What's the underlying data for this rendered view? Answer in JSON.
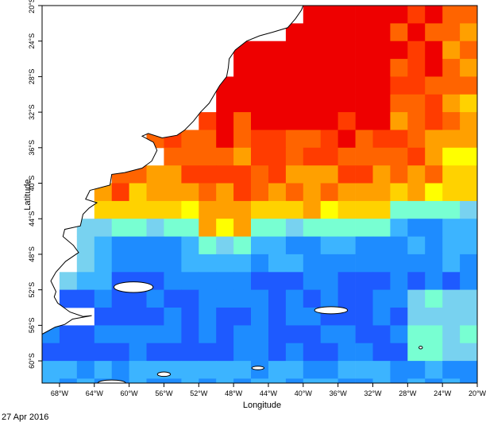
{
  "map": {
    "xlabel": "Longitude",
    "ylabel": "Latitude",
    "lon_ticks": [
      "68°W",
      "64°W",
      "60°W",
      "56°W",
      "52°W",
      "48°W",
      "44°W",
      "40°W",
      "36°W",
      "32°W",
      "28°W",
      "24°W",
      "20°W"
    ],
    "lat_ticks": [
      "20°S",
      "24°S",
      "28°S",
      "32°S",
      "36°S",
      "40°S",
      "44°S",
      "48°S",
      "52°S",
      "56°S",
      "60°S"
    ],
    "lon_range": [
      -70,
      -20
    ],
    "lat_range": [
      -62.5,
      -20
    ],
    "date": "27 Apr 2016",
    "colors": {
      "deep_blue": "#0a1ee6",
      "blue": "#1e5aff",
      "mid_blue": "#1e8cff",
      "light_blue": "#3cb4ff",
      "sky": "#78d2f0",
      "aqua": "#78ffd2",
      "green": "#78f03c",
      "yellow": "#ffff00",
      "gold": "#ffd200",
      "orange": "#ffa000",
      "dark_orange": "#ff6400",
      "red_orange": "#ff3c00",
      "red": "#ee0000",
      "land": "#ffffff",
      "coast": "#000000"
    }
  }
}
